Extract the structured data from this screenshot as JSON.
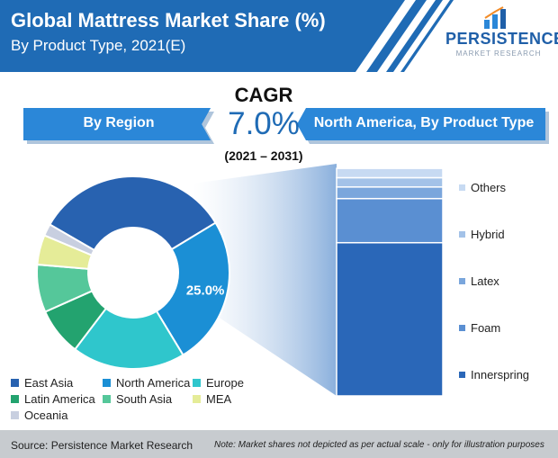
{
  "header": {
    "title": "Global Mattress Market Share (%)",
    "subtitle": "By Product Type, 2021(E)",
    "logo_main": "PERSISTENCE",
    "logo_sub": "MARKET RESEARCH"
  },
  "ribbons": {
    "left": "By Region",
    "right": "North America, By Product Type"
  },
  "cagr": {
    "label": "CAGR",
    "value": "7.0%",
    "period": "(2021 – 2031)"
  },
  "colors": {
    "header_blue": "#1f6bb5",
    "ribbon_blue": "#2b87d8"
  },
  "chart_data": [
    {
      "type": "pie",
      "variant": "donut",
      "categories": [
        "East Asia",
        "North America",
        "Europe",
        "Latin America",
        "South Asia",
        "MEA",
        "Oceania"
      ],
      "values": [
        33,
        25,
        19,
        8,
        8,
        5,
        2
      ],
      "colors": [
        "#2862b0",
        "#1b8fd5",
        "#2fc6cc",
        "#23a36f",
        "#55c79a",
        "#e5ec98",
        "#c8cfe0"
      ],
      "data_labels": [
        "",
        "25.0%",
        "",
        "",
        "",
        "",
        ""
      ],
      "legend_position": "bottom-left"
    },
    {
      "type": "bar",
      "variant": "100% stacked single column",
      "categories": [
        "Innerspring",
        "Foam",
        "Latex",
        "Hybrid",
        "Others"
      ],
      "values": [
        66,
        19,
        5,
        4,
        4
      ],
      "colors": [
        "#2a67b8",
        "#5a8fd2",
        "#7aa6dc",
        "#a3c2e8",
        "#c7daf2"
      ],
      "ylim": [
        0,
        100
      ],
      "legend_position": "right"
    }
  ],
  "footer": {
    "source": "Source: Persistence Market Research",
    "note": "Note: Market shares not depicted as per actual scale - only for illustration purposes"
  }
}
